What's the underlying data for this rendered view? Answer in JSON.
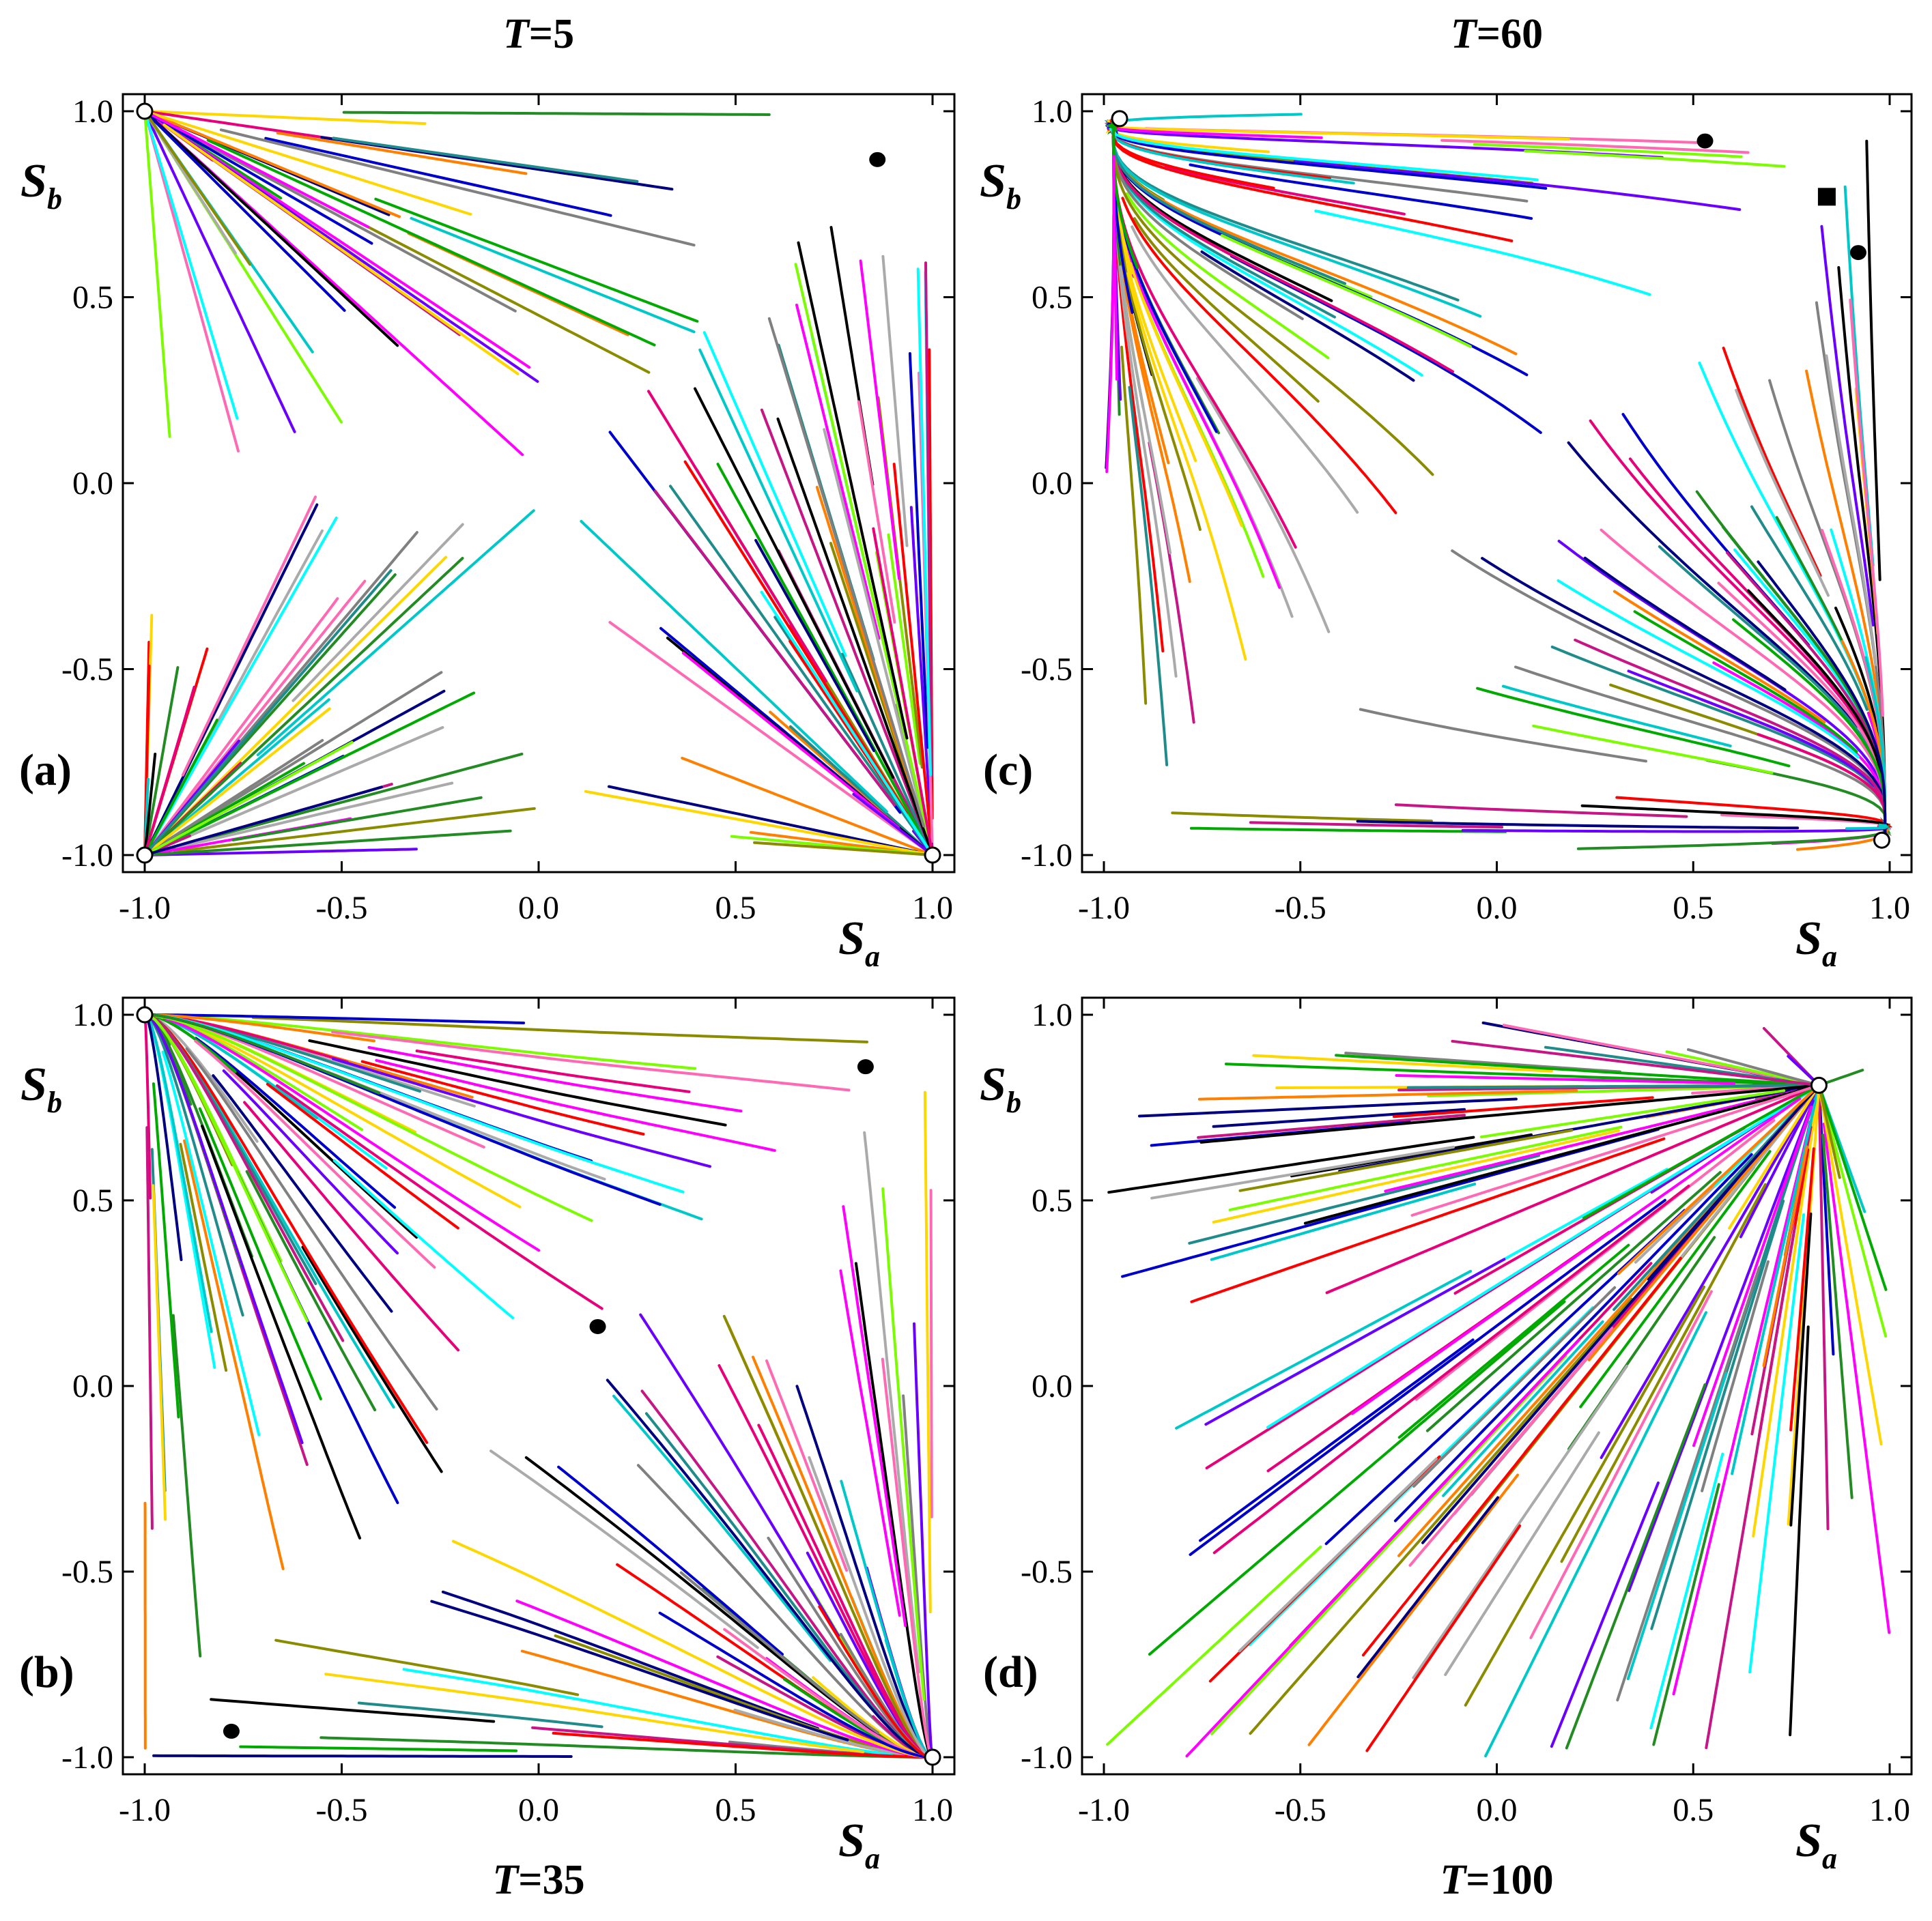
{
  "colors": [
    "#0000cc",
    "#ff0000",
    "#00aa00",
    "#ff00ff",
    "#ff8000",
    "#00c8c8",
    "#000000",
    "#808080",
    "#ff69b4",
    "#8b8b00",
    "#1f8b8b",
    "#228b22",
    "#6a00ff",
    "#aaaaaa",
    "#e8007a",
    "#00ffff",
    "#000080",
    "#c71585",
    "#ffd700",
    "#7cfc00"
  ],
  "axis": {
    "x_ticks": [
      "-1.0",
      "-0.5",
      "0.0",
      "0.5",
      "1.0"
    ],
    "y_ticks": [
      "1.0",
      "0.5",
      "0.0",
      "-0.5",
      "-1.0"
    ],
    "x_label_main": "S",
    "x_label_sub": "a",
    "y_label_main": "S",
    "y_label_sub": "b"
  },
  "chart_data": [
    {
      "panel": "(a)",
      "title_var": "T",
      "title_val": "=5",
      "type": "scatter",
      "xlim": [
        -1.0,
        1.0
      ],
      "ylim": [
        -1.0,
        1.0
      ],
      "xlabel": "Sa",
      "ylabel": "Sb",
      "stable_points": [
        [
          -1.0,
          1.0
        ],
        [
          -1.0,
          -1.0
        ],
        [
          1.0,
          -1.0
        ]
      ],
      "saddle_points": [
        [
          0.86,
          0.87
        ]
      ],
      "square_points": []
    },
    {
      "panel": "(b)",
      "title_var": "T",
      "title_val": "=35",
      "type": "scatter",
      "xlim": [
        -1.0,
        1.0
      ],
      "ylim": [
        -1.0,
        1.0
      ],
      "xlabel": "Sa",
      "ylabel": "Sb",
      "stable_points": [
        [
          -1.0,
          1.0
        ],
        [
          1.0,
          -1.0
        ]
      ],
      "saddle_points": [
        [
          0.83,
          0.86
        ],
        [
          0.15,
          0.16
        ],
        [
          -0.78,
          -0.93
        ]
      ],
      "square_points": []
    },
    {
      "panel": "(c)",
      "title_var": "T",
      "title_val": "=60",
      "type": "scatter",
      "xlim": [
        -1.0,
        1.0
      ],
      "ylim": [
        -1.0,
        1.0
      ],
      "xlabel": "Sa",
      "ylabel": "Sb",
      "stable_points": [
        [
          -0.96,
          0.98
        ],
        [
          0.98,
          -0.96
        ]
      ],
      "saddle_points": [
        [
          0.53,
          0.92
        ],
        [
          0.92,
          0.62
        ]
      ],
      "square_points": [
        [
          0.84,
          0.77
        ]
      ]
    },
    {
      "panel": "(d)",
      "title_var": "T",
      "title_val": "=100",
      "type": "scatter",
      "xlim": [
        -1.0,
        1.0
      ],
      "ylim": [
        -1.0,
        1.0
      ],
      "xlabel": "Sa",
      "ylabel": "Sb",
      "stable_points": [
        [
          0.82,
          0.81
        ]
      ],
      "saddle_points": [],
      "square_points": []
    }
  ]
}
